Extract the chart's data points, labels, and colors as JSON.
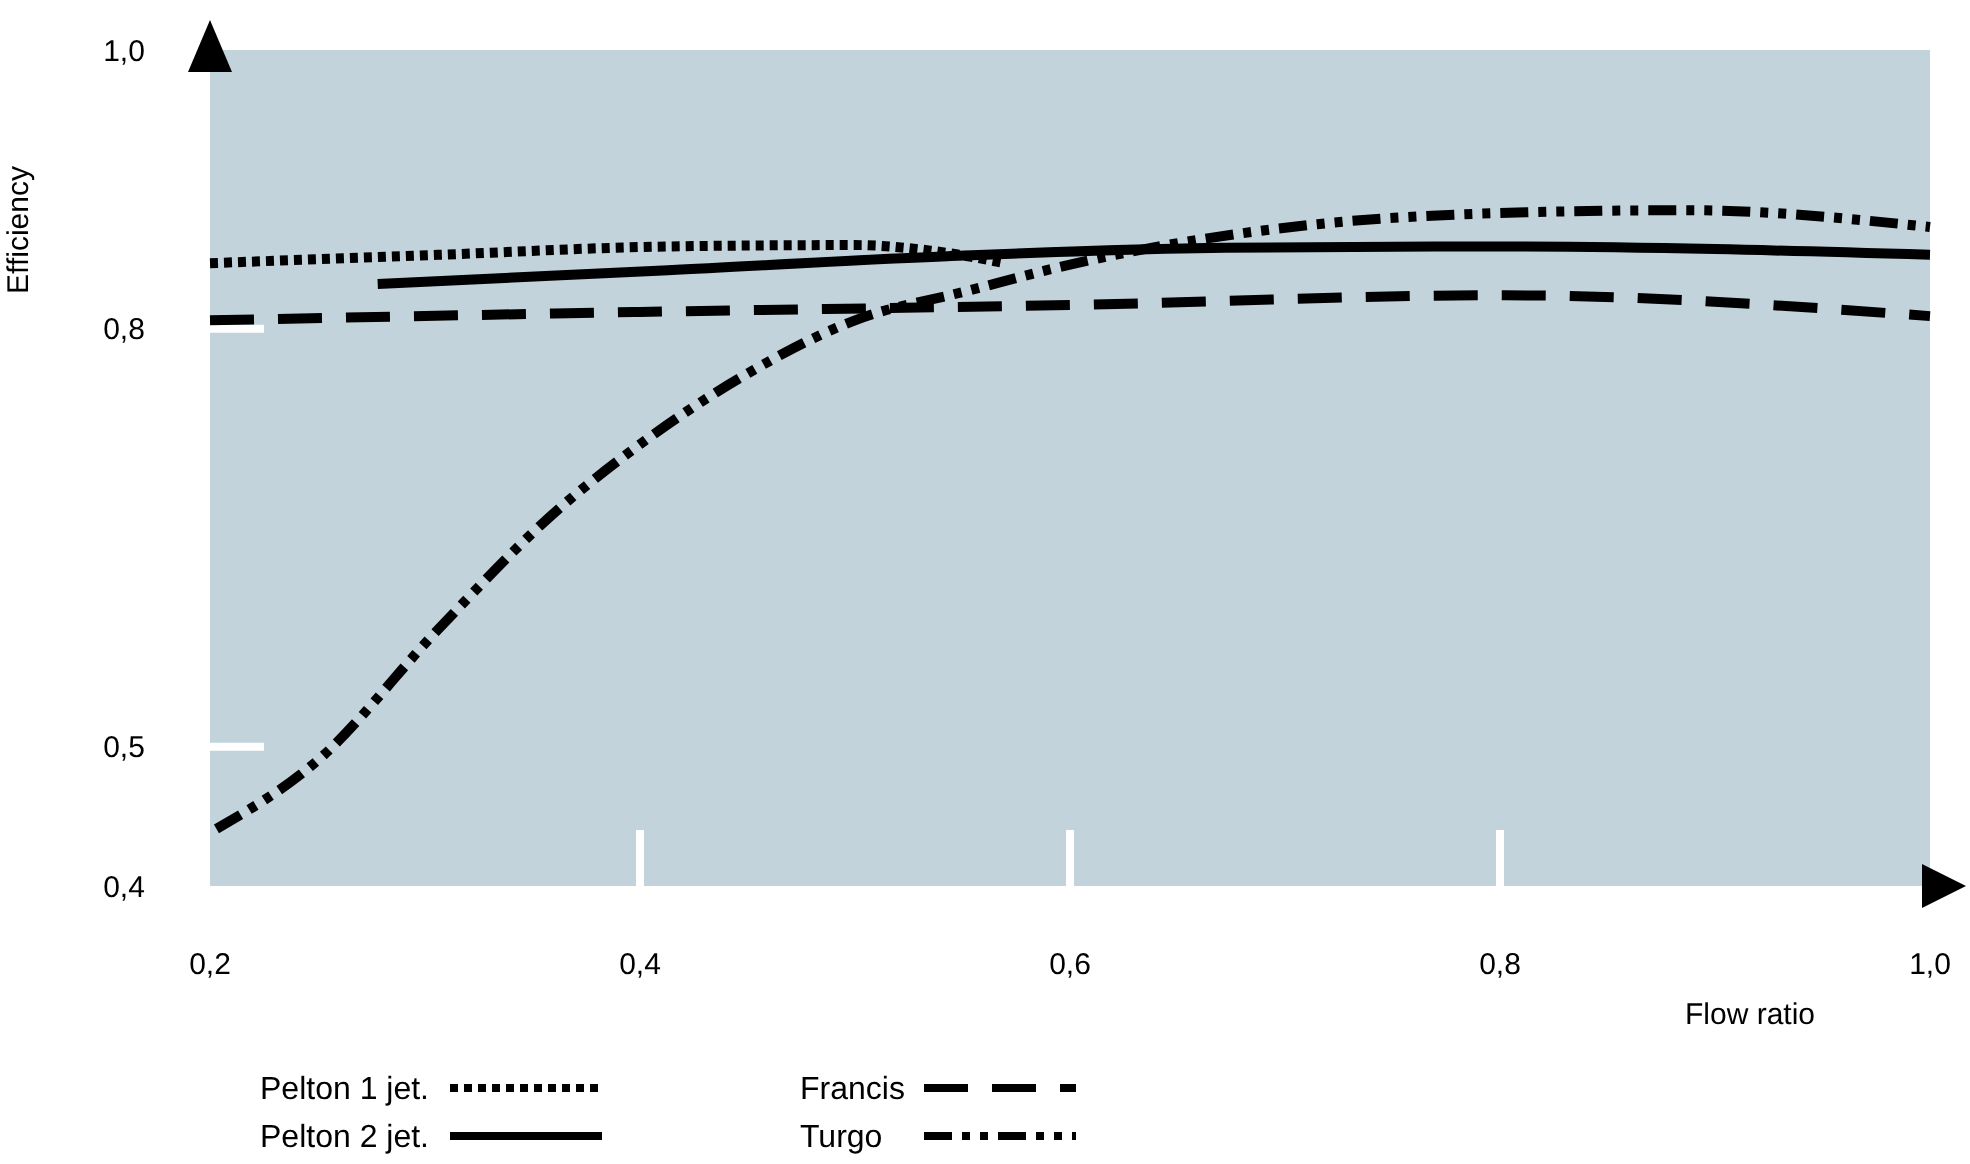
{
  "chart_data": {
    "type": "line",
    "xlabel": "Flow ratio",
    "ylabel": "Efficiency",
    "xlim": [
      0.2,
      1.0
    ],
    "ylim": [
      0.4,
      1.0
    ],
    "xticks": [
      {
        "value": 0.2,
        "label": "0,2"
      },
      {
        "value": 0.4,
        "label": "0,4"
      },
      {
        "value": 0.6,
        "label": "0,6"
      },
      {
        "value": 0.8,
        "label": "0,8"
      },
      {
        "value": 1.0,
        "label": "1,0"
      }
    ],
    "yticks": [
      {
        "value": 0.4,
        "label": "0,4"
      },
      {
        "value": 0.5,
        "label": "0,5"
      },
      {
        "value": 0.8,
        "label": "0,8"
      },
      {
        "value": 1.0,
        "label": "1,0"
      }
    ],
    "legend": "bottom",
    "series": [
      {
        "name": "Pelton 1 jet.",
        "color": "#000000",
        "line_style": "dotted",
        "x": [
          0.2,
          0.306,
          0.413,
          0.5,
          0.535,
          0.57
        ],
        "values": [
          0.847,
          0.853,
          0.859,
          0.86,
          0.856,
          0.847
        ]
      },
      {
        "name": "Pelton 2 jet.",
        "color": "#000000",
        "line_style": "solid",
        "x": [
          0.278,
          0.413,
          0.543,
          0.672,
          0.8,
          1.0
        ],
        "values": [
          0.832,
          0.842,
          0.852,
          0.858,
          0.859,
          0.853
        ]
      },
      {
        "name": "Francis",
        "color": "#000000",
        "line_style": "dashed",
        "x": [
          0.2,
          0.4,
          0.6,
          0.8,
          1.0
        ],
        "values": [
          0.806,
          0.812,
          0.817,
          0.824,
          0.809
        ]
      },
      {
        "name": "Turgo",
        "color": "#000000",
        "line_style": "dashdotdot",
        "x": [
          0.203,
          0.25,
          0.306,
          0.361,
          0.4,
          0.448,
          0.5,
          0.552,
          0.6,
          0.715,
          0.8,
          0.887,
          1.0
        ],
        "values": [
          0.441,
          0.49,
          0.584,
          0.669,
          0.717,
          0.766,
          0.806,
          0.827,
          0.846,
          0.875,
          0.883,
          0.885,
          0.873
        ]
      }
    ]
  }
}
